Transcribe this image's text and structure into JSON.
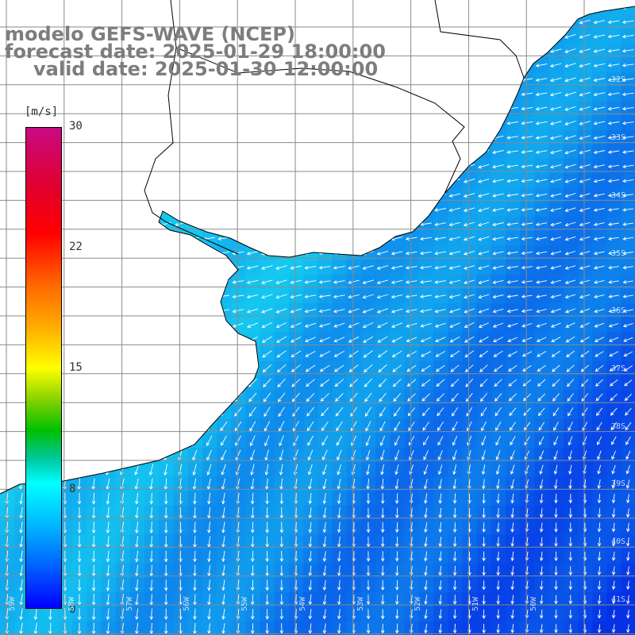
{
  "title": {
    "model": "modelo GEFS-WAVE (NCEP)",
    "forecast": "forecast date: 2025-01-29 18:00:00",
    "valid": "valid date: 2025-01-30 12:00:00"
  },
  "colorbar": {
    "unit": "[m/s]",
    "ticks": [
      "30",
      "22",
      "15",
      "8",
      "0"
    ],
    "tick_values": [
      30,
      22,
      15,
      8,
      0
    ]
  },
  "grid": {
    "lat_labels": [
      "32S",
      "33S",
      "34S",
      "35S",
      "36S",
      "37S",
      "38S",
      "39S",
      "40S",
      "41S"
    ],
    "lon_labels": [
      "59W",
      "58W",
      "57W",
      "56W",
      "55W",
      "54W",
      "53W",
      "52W",
      "51W",
      "50W"
    ]
  },
  "colors": {
    "land": "#ffffff",
    "coastline": "#000000",
    "gridline": "#808080",
    "arrow": "#ffffff",
    "title": "#7d7d7d"
  },
  "icons": {
    "arrow": "wind-arrow-icon"
  }
}
